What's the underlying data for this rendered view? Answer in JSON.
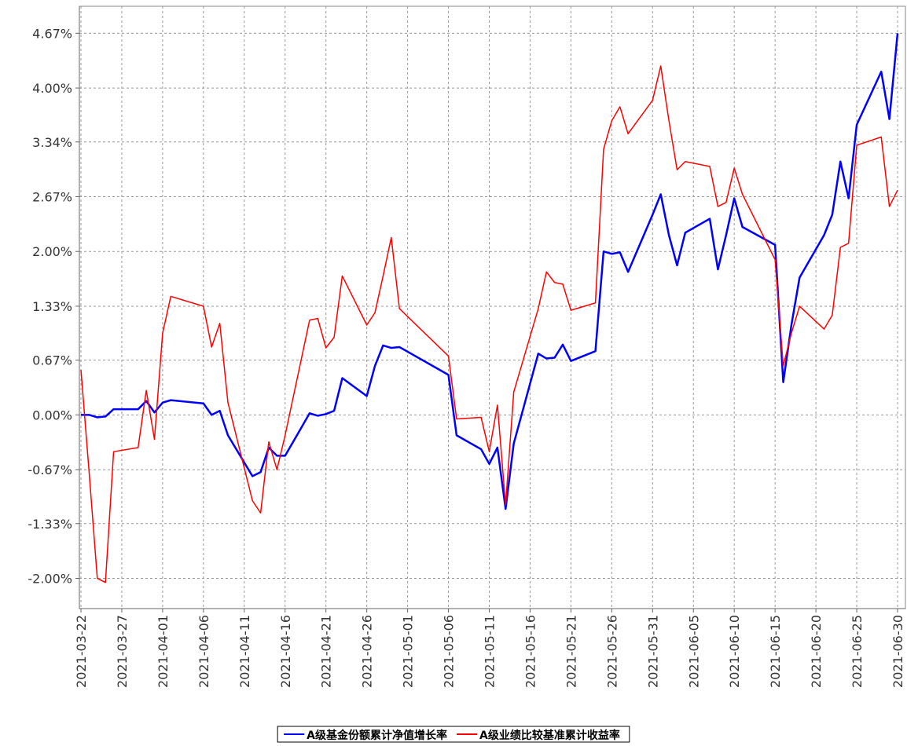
{
  "chart_data": {
    "type": "line",
    "x": [
      "2021-03-22",
      "2021-03-23",
      "2021-03-24",
      "2021-03-25",
      "2021-03-26",
      "2021-03-29",
      "2021-03-30",
      "2021-03-31",
      "2021-04-01",
      "2021-04-02",
      "2021-04-06",
      "2021-04-07",
      "2021-04-08",
      "2021-04-09",
      "2021-04-12",
      "2021-04-13",
      "2021-04-14",
      "2021-04-15",
      "2021-04-16",
      "2021-04-19",
      "2021-04-20",
      "2021-04-21",
      "2021-04-22",
      "2021-04-23",
      "2021-04-26",
      "2021-04-27",
      "2021-04-28",
      "2021-04-29",
      "2021-04-30",
      "2021-05-06",
      "2021-05-07",
      "2021-05-10",
      "2021-05-11",
      "2021-05-12",
      "2021-05-13",
      "2021-05-14",
      "2021-05-17",
      "2021-05-18",
      "2021-05-19",
      "2021-05-20",
      "2021-05-21",
      "2021-05-24",
      "2021-05-25",
      "2021-05-26",
      "2021-05-27",
      "2021-05-28",
      "2021-05-31",
      "2021-06-01",
      "2021-06-02",
      "2021-06-03",
      "2021-06-04",
      "2021-06-07",
      "2021-06-08",
      "2021-06-09",
      "2021-06-10",
      "2021-06-11",
      "2021-06-15",
      "2021-06-16",
      "2021-06-17",
      "2021-06-18",
      "2021-06-21",
      "2021-06-22",
      "2021-06-23",
      "2021-06-24",
      "2021-06-25",
      "2021-06-28",
      "2021-06-29",
      "2021-06-30"
    ],
    "series": [
      {
        "name": "A级基金份额累计净值增长率",
        "color": "#0000ff",
        "values": [
          0.0,
          0.0,
          -0.03,
          -0.02,
          0.07,
          0.07,
          0.17,
          0.03,
          0.15,
          0.18,
          0.14,
          0.0,
          0.05,
          -0.25,
          -0.75,
          -0.7,
          -0.4,
          -0.5,
          -0.5,
          0.02,
          -0.01,
          0.01,
          0.05,
          0.45,
          0.23,
          0.6,
          0.85,
          0.82,
          0.83,
          0.49,
          -0.25,
          -0.42,
          -0.6,
          -0.4,
          -1.15,
          -0.35,
          0.75,
          0.69,
          0.7,
          0.86,
          0.66,
          0.78,
          2.0,
          1.97,
          1.99,
          1.75,
          2.45,
          2.7,
          2.2,
          1.83,
          2.23,
          2.4,
          1.78,
          2.2,
          2.65,
          2.3,
          2.08,
          0.4,
          1.1,
          1.68,
          2.2,
          2.45,
          3.1,
          2.65,
          3.55,
          4.2,
          3.62,
          4.67
        ]
      },
      {
        "name": "A级业绩比较基准累计收益率",
        "color": "#ff0000",
        "values": [
          0.55,
          -0.7,
          -2.0,
          -2.05,
          -0.45,
          -0.4,
          0.3,
          -0.3,
          1.0,
          1.45,
          1.33,
          0.83,
          1.12,
          0.15,
          -1.05,
          -1.2,
          -0.33,
          -0.67,
          -0.25,
          1.16,
          1.18,
          0.82,
          0.95,
          1.7,
          1.1,
          1.25,
          1.7,
          2.17,
          1.3,
          0.72,
          -0.05,
          -0.03,
          -0.45,
          0.12,
          -1.1,
          0.28,
          1.3,
          1.75,
          1.62,
          1.6,
          1.28,
          1.37,
          3.25,
          3.6,
          3.77,
          3.44,
          3.85,
          4.27,
          3.6,
          3.0,
          3.1,
          3.04,
          2.55,
          2.6,
          3.02,
          2.7,
          1.9,
          0.6,
          1.0,
          1.33,
          1.05,
          1.22,
          2.05,
          2.1,
          3.3,
          3.4,
          2.55,
          2.75
        ]
      }
    ],
    "xlim": [
      "2021-03-22",
      "2021-06-30"
    ],
    "xticks": [
      "2021-03-22",
      "2021-03-27",
      "2021-04-01",
      "2021-04-06",
      "2021-04-11",
      "2021-04-16",
      "2021-04-21",
      "2021-04-26",
      "2021-05-01",
      "2021-05-06",
      "2021-05-11",
      "2021-05-16",
      "2021-05-21",
      "2021-05-26",
      "2021-05-31",
      "2021-06-05",
      "2021-06-10",
      "2021-06-15",
      "2021-06-20",
      "2021-06-25",
      "2021-06-30"
    ],
    "ylim": [
      -2.37,
      5.0
    ],
    "yticks": [
      {
        "value": 4.67,
        "label": "4.67%"
      },
      {
        "value": 4.0,
        "label": "4.00%"
      },
      {
        "value": 3.34,
        "label": "3.34%"
      },
      {
        "value": 2.67,
        "label": "2.67%"
      },
      {
        "value": 2.0,
        "label": "2.00%"
      },
      {
        "value": 1.33,
        "label": "1.33%"
      },
      {
        "value": 0.67,
        "label": "0.67%"
      },
      {
        "value": 0.0,
        "label": "0.00%"
      },
      {
        "value": -0.67,
        "label": "-0.67%"
      },
      {
        "value": -1.33,
        "label": "-1.33%"
      },
      {
        "value": -2.0,
        "label": "-2.00%"
      }
    ],
    "grid": true,
    "legend": "bottom"
  }
}
